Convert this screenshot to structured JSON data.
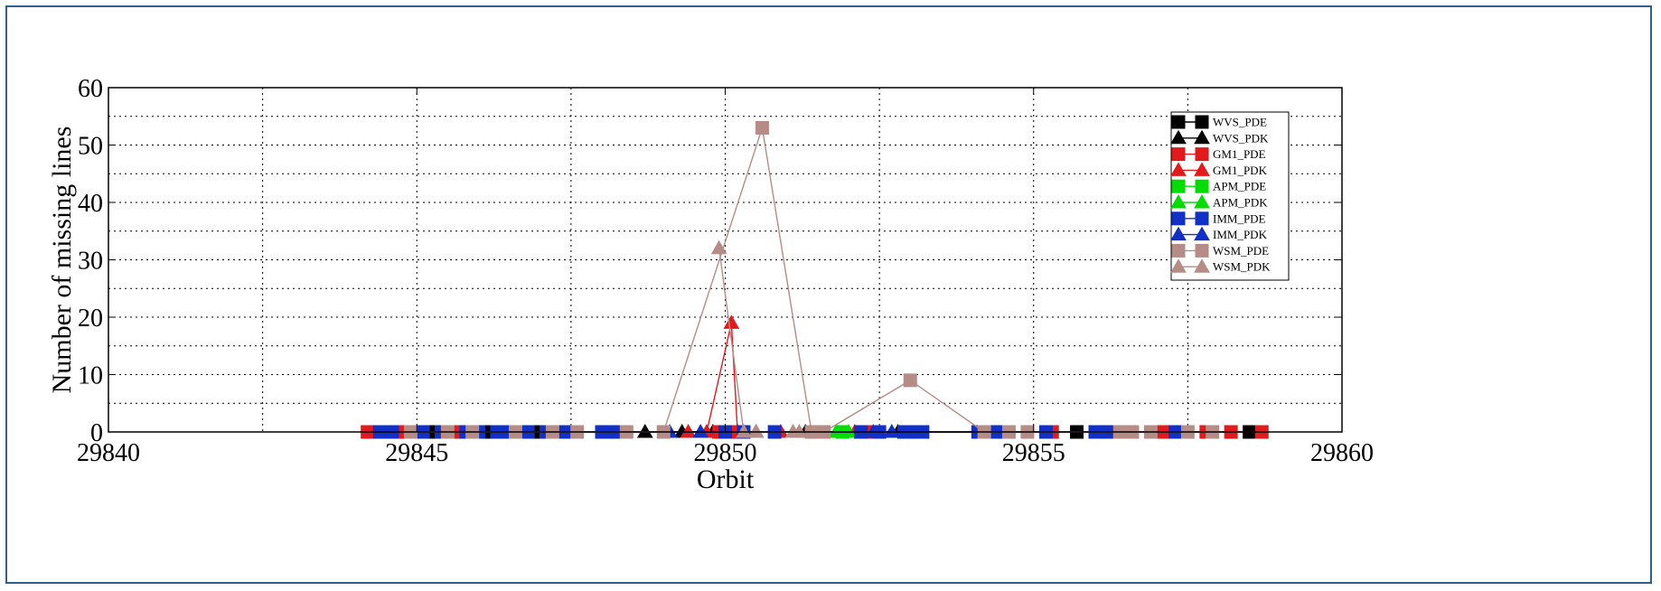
{
  "chart_data": {
    "type": "line",
    "title": "",
    "xlabel": "Orbit",
    "ylabel": "Number of missing lines",
    "xlim": [
      29840,
      29860
    ],
    "ylim": [
      0,
      60
    ],
    "xticks": [
      "29840",
      "29845",
      "29850",
      "29855",
      "29860"
    ],
    "yticks": [
      "0",
      "10",
      "20",
      "30",
      "40",
      "50",
      "60"
    ],
    "grid": true,
    "legend_position": "top-right",
    "series": [
      {
        "name": "WVS_PDE",
        "color": "#000000",
        "marker": "square",
        "x": [
          29844.5,
          29845.3,
          29846.2,
          29847.0,
          29847.5,
          29855.7,
          29858.5
        ],
        "y": [
          0,
          0,
          0,
          0,
          0,
          0,
          0
        ]
      },
      {
        "name": "WVS_PDK",
        "color": "#000000",
        "marker": "triangle",
        "x": [
          29848.7,
          29849.3,
          29849.8,
          29850.0,
          29851.3,
          29852.8
        ],
        "y": [
          0,
          0,
          0,
          0,
          0,
          0
        ]
      },
      {
        "name": "GM1_PDE",
        "color": "#e31a1c",
        "marker": "square",
        "x": [
          29844.2,
          29844.8,
          29845.6,
          29846.6,
          29847.3,
          29849.9,
          29850.2,
          29852.3,
          29855.3,
          29857.1,
          29857.8,
          29858.2,
          29858.7
        ],
        "y": [
          0,
          0,
          0,
          0,
          0,
          0,
          0,
          0,
          0,
          0,
          0,
          0,
          0
        ]
      },
      {
        "name": "GM1_PDK",
        "color": "#e31a1c",
        "marker": "triangle",
        "x": [
          29849.4,
          29849.7,
          29850.1,
          29850.2,
          29850.5,
          29850.9,
          29852.1
        ],
        "y": [
          0,
          0,
          19,
          0,
          0,
          0,
          0
        ]
      },
      {
        "name": "APM_PDE",
        "color": "#00dd00",
        "marker": "square",
        "x": [
          29851.9
        ],
        "y": [
          0
        ]
      },
      {
        "name": "APM_PDK",
        "color": "#00dd00",
        "marker": "triangle",
        "x": [
          29851.8,
          29852.0
        ],
        "y": [
          0,
          0
        ]
      },
      {
        "name": "IMM_PDE",
        "color": "#1030c8",
        "marker": "square",
        "x": [
          29844.4,
          29844.6,
          29845.1,
          29845.4,
          29845.8,
          29846.0,
          29846.3,
          29846.5,
          29846.8,
          29847.1,
          29847.4,
          29848.0,
          29848.2,
          29850.0,
          29850.3,
          29850.8,
          29852.2,
          29852.5,
          29852.9,
          29853.0,
          29853.2,
          29854.1,
          29854.4,
          29855.2,
          29856.0,
          29856.2,
          29857.3
        ],
        "y": [
          0,
          0,
          0,
          0,
          0,
          0,
          0,
          0,
          0,
          0,
          0,
          0,
          0,
          0,
          0,
          0,
          0,
          0,
          0,
          0,
          0,
          0,
          0,
          0,
          0,
          0,
          0
        ]
      },
      {
        "name": "IMM_PDK",
        "color": "#1030c8",
        "marker": "triangle",
        "x": [
          29849.1,
          29849.6,
          29852.4,
          29852.7
        ],
        "y": [
          0,
          0,
          0,
          0
        ]
      },
      {
        "name": "WSM_PDE",
        "color": "#b58c86",
        "marker": "square",
        "x": [
          29844.9,
          29845.5,
          29845.9,
          29846.6,
          29847.2,
          29847.6,
          29848.4,
          29849.0,
          29850.6,
          29851.4,
          29851.6,
          29853.0,
          29854.2,
          29854.6,
          29854.9,
          29856.4,
          29856.6,
          29856.9,
          29857.5,
          29857.9
        ],
        "y": [
          0,
          0,
          0,
          0,
          0,
          0,
          0,
          0,
          53,
          0,
          0,
          9,
          0,
          0,
          0,
          0,
          0,
          0,
          0,
          0
        ]
      },
      {
        "name": "WSM_PDK",
        "color": "#b58c86",
        "marker": "triangle",
        "x": [
          29849.9,
          29850.3,
          29850.5,
          29851.1,
          29851.2
        ],
        "y": [
          32,
          0,
          0,
          0,
          0
        ]
      }
    ]
  }
}
